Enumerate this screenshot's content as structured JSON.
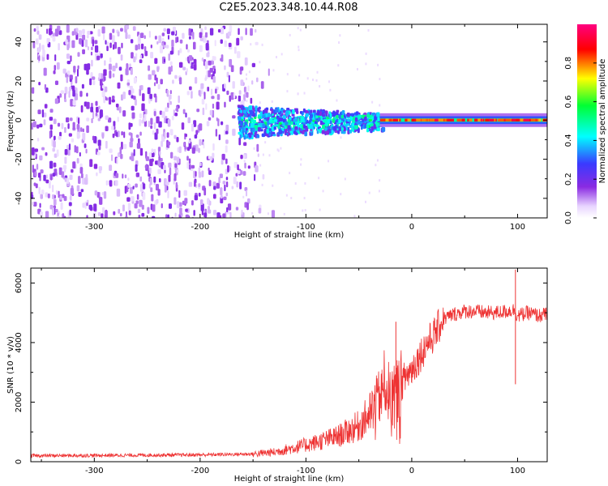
{
  "title": "C2E5.2023.348.10.44.R08",
  "chart_data": [
    {
      "type": "heatmap",
      "xlabel": "Height of straight line (km)",
      "ylabel": "Frequency (Hz)",
      "xlim": [
        -360,
        128
      ],
      "ylim": [
        -50,
        49
      ],
      "x_ticks": [
        -300,
        -200,
        -100,
        0,
        100
      ],
      "y_ticks": [
        -40,
        -20,
        0,
        20,
        40
      ],
      "colorbar": {
        "label": "Normalized spectral amplitude",
        "range": [
          0.0,
          1.0
        ],
        "ticks": [
          0.0,
          0.2,
          0.4,
          0.6,
          0.8
        ],
        "colormap": [
          "#ffffff",
          "#e8d5ff",
          "#8a2be2",
          "#3a3aff",
          "#00ffff",
          "#00ff33",
          "#ffff00",
          "#ff0000",
          "#ff0080"
        ]
      },
      "regions": [
        {
          "x": [
            -360,
            -160
          ],
          "freq_band": [
            -50,
            49
          ],
          "amplitude": "low-moderate broadband noise"
        },
        {
          "x": [
            -160,
            -30
          ],
          "freq_band": [
            -8,
            8
          ],
          "amplitude": "0.2-0.6 scattered"
        },
        {
          "x": [
            -30,
            128
          ],
          "freq_band": [
            -3,
            3
          ],
          "amplitude": "0.8-1.0 narrow line at 0 Hz"
        }
      ]
    },
    {
      "type": "line",
      "xlabel": "Height of straight line (km)",
      "ylabel": "SNR (10 * v/v)",
      "xlim": [
        -360,
        128
      ],
      "ylim": [
        0,
        6500
      ],
      "x_ticks": [
        -300,
        -200,
        -100,
        0,
        100
      ],
      "y_ticks": [
        0,
        2000,
        4000,
        6000
      ],
      "series": [
        {
          "color": "#ee3333",
          "x": [
            -360,
            -300,
            -250,
            -200,
            -150,
            -130,
            -110,
            -90,
            -70,
            -50,
            -40,
            -30,
            -25,
            -20,
            -15,
            -10,
            -5,
            0,
            5,
            10,
            15,
            20,
            25,
            30,
            40,
            50,
            60,
            70,
            80,
            90,
            97,
            100,
            110,
            120,
            128
          ],
          "values": [
            200,
            210,
            220,
            230,
            260,
            320,
            480,
            650,
            850,
            1200,
            1600,
            2200,
            2700,
            2100,
            2300,
            2600,
            2900,
            3100,
            3400,
            3700,
            4000,
            4200,
            4500,
            4800,
            4950,
            5050,
            5050,
            5000,
            5000,
            5050,
            5100,
            4900,
            5000,
            4900,
            4950
          ],
          "spikes": [
            {
              "x": 98,
              "value": 6450
            },
            {
              "x": 98,
              "value": 2600
            },
            {
              "x": -15,
              "value": 4700
            }
          ]
        }
      ]
    }
  ]
}
